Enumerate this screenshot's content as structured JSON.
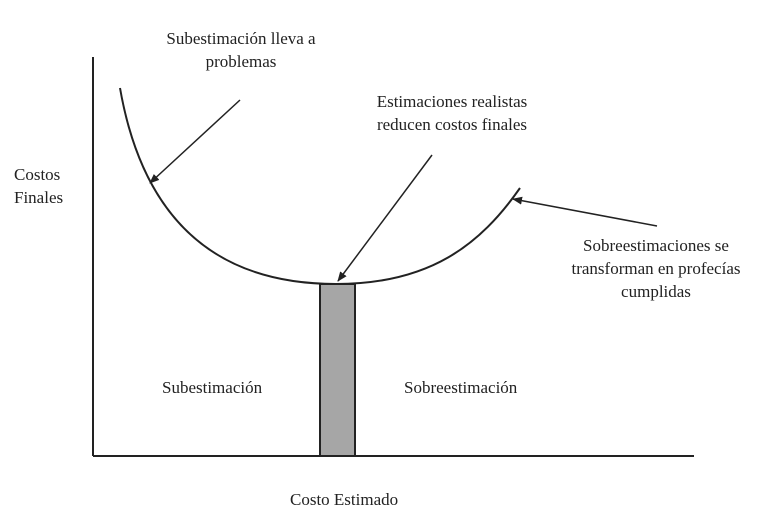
{
  "labels": {
    "ylabel_line1": "Costos",
    "ylabel_line2": "Finales",
    "xlabel": "Costo Estimado",
    "under_line1": "Subestimación lleva a",
    "under_line2": "problemas",
    "realistic_line1": "Estimaciones realistas",
    "realistic_line2": "reducen costos finales",
    "over_line1": "Sobreestimaciones se",
    "over_line2": "transforman en profecías",
    "over_line3": "cumplidas",
    "region_under": "Subestimación",
    "region_over": "Sobreestimación"
  },
  "colors": {
    "ink": "#222222",
    "bar_fill": "#a6a6a6"
  }
}
